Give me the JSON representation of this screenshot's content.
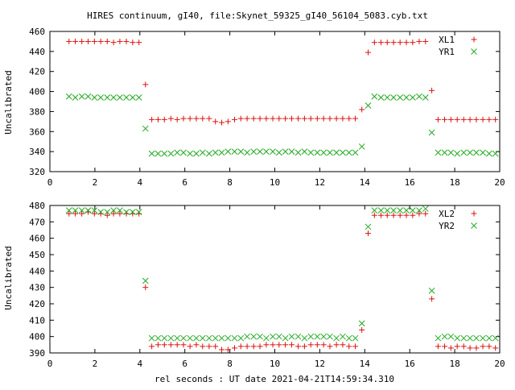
{
  "chart_data": {
    "title": "HIRES continuum, gI40, file:Skynet_59325_gI40_56104_5083.cyb.txt",
    "xlabel": "rel seconds : UT date 2021-04-21T14:59:34.310",
    "panels": [
      {
        "type": "scatter",
        "ylabel": "Uncalibrated",
        "xlim": [
          0,
          20
        ],
        "ylim": [
          320,
          460
        ],
        "xticks": [
          0,
          2,
          4,
          6,
          8,
          10,
          12,
          14,
          16,
          18,
          20
        ],
        "yticks": [
          320,
          340,
          360,
          380,
          400,
          420,
          440,
          460
        ],
        "legend": "top-right",
        "series": [
          {
            "name": "XL1",
            "marker": "plus",
            "color": "#dd1111",
            "x": [
              0.85,
              1.13,
              1.42,
              1.7,
              1.98,
              2.26,
              2.55,
              2.83,
              3.11,
              3.4,
              3.68,
              3.96,
              4.25,
              4.53,
              4.81,
              5.09,
              5.38,
              5.66,
              5.94,
              6.23,
              6.51,
              6.79,
              7.08,
              7.36,
              7.64,
              7.92,
              8.21,
              8.49,
              8.77,
              9.06,
              9.34,
              9.62,
              9.91,
              10.19,
              10.47,
              10.75,
              11.04,
              11.32,
              11.6,
              11.89,
              12.17,
              12.45,
              12.74,
              13.02,
              13.3,
              13.58,
              13.87,
              14.15,
              14.43,
              14.72,
              15.0,
              15.28,
              15.57,
              15.85,
              16.13,
              16.42,
              16.7,
              16.98,
              17.26,
              17.55,
              17.83,
              18.11,
              18.4,
              18.68,
              18.96,
              19.25,
              19.53,
              19.81
            ],
            "y": [
              450,
              450,
              450,
              450,
              450,
              450,
              450,
              449,
              450,
              450,
              449,
              449,
              407,
              372,
              372,
              372,
              373,
              372,
              373,
              373,
              373,
              373,
              373,
              370,
              369,
              370,
              372,
              373,
              373,
              373,
              373,
              373,
              373,
              373,
              373,
              373,
              373,
              373,
              373,
              373,
              373,
              373,
              373,
              373,
              373,
              373,
              382,
              439,
              449,
              449,
              449,
              449,
              449,
              449,
              449,
              450,
              450,
              401,
              372,
              372,
              372,
              372,
              372,
              372,
              372,
              372,
              372,
              372
            ]
          },
          {
            "name": "YR1",
            "marker": "x",
            "color": "#22aa22",
            "x": [
              0.85,
              1.13,
              1.42,
              1.7,
              1.98,
              2.26,
              2.55,
              2.83,
              3.11,
              3.4,
              3.68,
              3.96,
              4.25,
              4.53,
              4.81,
              5.09,
              5.38,
              5.66,
              5.94,
              6.23,
              6.51,
              6.79,
              7.08,
              7.36,
              7.64,
              7.92,
              8.21,
              8.49,
              8.77,
              9.06,
              9.34,
              9.62,
              9.91,
              10.19,
              10.47,
              10.75,
              11.04,
              11.32,
              11.6,
              11.89,
              12.17,
              12.45,
              12.74,
              13.02,
              13.3,
              13.58,
              13.87,
              14.15,
              14.43,
              14.72,
              15.0,
              15.28,
              15.57,
              15.85,
              16.13,
              16.42,
              16.7,
              16.98,
              17.26,
              17.55,
              17.83,
              18.11,
              18.4,
              18.68,
              18.96,
              19.25,
              19.53,
              19.81
            ],
            "y": [
              395,
              394,
              395,
              395,
              394,
              394,
              394,
              394,
              394,
              394,
              394,
              394,
              363,
              338,
              338,
              338,
              338,
              339,
              339,
              338,
              338,
              339,
              338,
              339,
              339,
              340,
              340,
              340,
              339,
              340,
              340,
              340,
              340,
              339,
              340,
              340,
              339,
              340,
              339,
              339,
              339,
              339,
              339,
              339,
              339,
              339,
              345,
              386,
              395,
              394,
              394,
              394,
              394,
              394,
              394,
              395,
              394,
              359,
              339,
              339,
              339,
              338,
              339,
              339,
              339,
              339,
              338,
              338
            ]
          }
        ]
      },
      {
        "type": "scatter",
        "ylabel": "Uncalibrated",
        "xlim": [
          0,
          20
        ],
        "ylim": [
          390,
          480
        ],
        "xticks": [
          0,
          2,
          4,
          6,
          8,
          10,
          12,
          14,
          16,
          18,
          20
        ],
        "yticks": [
          390,
          400,
          410,
          420,
          430,
          440,
          450,
          460,
          470,
          480
        ],
        "legend": "top-right",
        "series": [
          {
            "name": "XL2",
            "marker": "plus",
            "color": "#dd1111",
            "x": [
              0.85,
              1.13,
              1.42,
              1.7,
              1.98,
              2.26,
              2.55,
              2.83,
              3.11,
              3.4,
              3.68,
              3.96,
              4.25,
              4.53,
              4.81,
              5.09,
              5.38,
              5.66,
              5.94,
              6.23,
              6.51,
              6.79,
              7.08,
              7.36,
              7.64,
              7.92,
              8.21,
              8.49,
              8.77,
              9.06,
              9.34,
              9.62,
              9.91,
              10.19,
              10.47,
              10.75,
              11.04,
              11.32,
              11.6,
              11.89,
              12.17,
              12.45,
              12.74,
              13.02,
              13.3,
              13.58,
              13.87,
              14.15,
              14.43,
              14.72,
              15.0,
              15.28,
              15.57,
              15.85,
              16.13,
              16.42,
              16.7,
              16.98,
              17.26,
              17.55,
              17.83,
              18.11,
              18.4,
              18.68,
              18.96,
              19.25,
              19.53,
              19.81
            ],
            "y": [
              475,
              475,
              475,
              476,
              475,
              475,
              474,
              475,
              475,
              475,
              475,
              475,
              430,
              394,
              395,
              395,
              395,
              395,
              395,
              394,
              395,
              394,
              394,
              394,
              392,
              392,
              393,
              394,
              394,
              394,
              394,
              395,
              395,
              395,
              395,
              395,
              394,
              394,
              395,
              395,
              395,
              394,
              395,
              395,
              394,
              394,
              404,
              463,
              474,
              474,
              474,
              474,
              474,
              474,
              474,
              475,
              475,
              423,
              394,
              394,
              393,
              394,
              394,
              393,
              393,
              394,
              394,
              393
            ]
          },
          {
            "name": "YR2",
            "marker": "x",
            "color": "#22aa22",
            "x": [
              0.85,
              1.13,
              1.42,
              1.7,
              1.98,
              2.26,
              2.55,
              2.83,
              3.11,
              3.4,
              3.68,
              3.96,
              4.25,
              4.53,
              4.81,
              5.09,
              5.38,
              5.66,
              5.94,
              6.23,
              6.51,
              6.79,
              7.08,
              7.36,
              7.64,
              7.92,
              8.21,
              8.49,
              8.77,
              9.06,
              9.34,
              9.62,
              9.91,
              10.19,
              10.47,
              10.75,
              11.04,
              11.32,
              11.6,
              11.89,
              12.17,
              12.45,
              12.74,
              13.02,
              13.3,
              13.58,
              13.87,
              14.15,
              14.43,
              14.72,
              15.0,
              15.28,
              15.57,
              15.85,
              16.13,
              16.42,
              16.7,
              16.98,
              17.26,
              17.55,
              17.83,
              18.11,
              18.4,
              18.68,
              18.96,
              19.25,
              19.53,
              19.81
            ],
            "y": [
              477,
              477,
              477,
              477,
              477,
              476,
              476,
              477,
              477,
              476,
              476,
              476,
              434,
              399,
              399,
              399,
              399,
              399,
              399,
              399,
              399,
              399,
              399,
              399,
              399,
              399,
              399,
              399,
              400,
              400,
              400,
              399,
              400,
              400,
              399,
              400,
              400,
              399,
              400,
              400,
              400,
              400,
              399,
              400,
              399,
              399,
              408,
              467,
              477,
              477,
              477,
              477,
              477,
              477,
              477,
              477,
              478,
              428,
              399,
              400,
              400,
              399,
              399,
              399,
              399,
              399,
              399,
              399
            ]
          }
        ]
      }
    ]
  }
}
